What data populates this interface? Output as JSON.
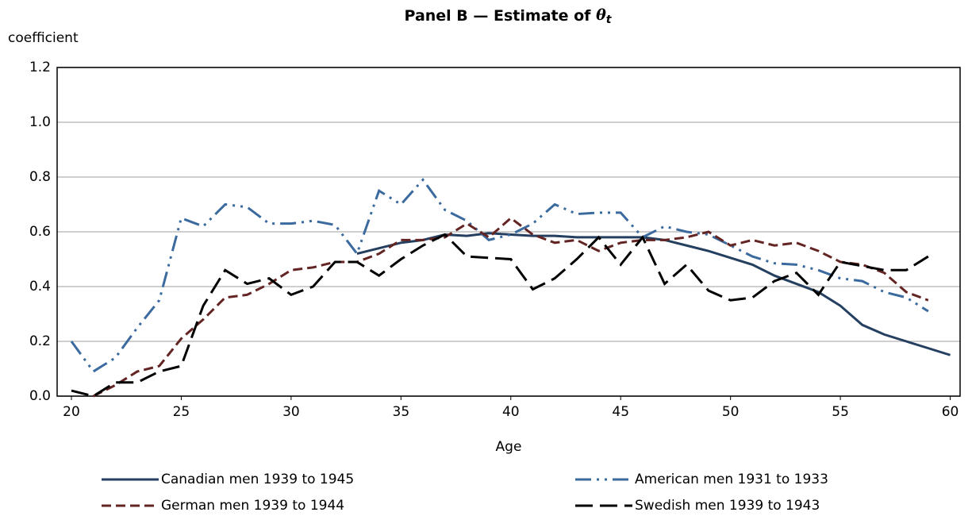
{
  "chart_data": {
    "type": "line",
    "title": "Panel B — Estimate of",
    "title_symbol": "θ",
    "title_subscript": "t",
    "y_label": "coefficient",
    "x_label": "Age",
    "x": [
      20,
      21,
      22,
      23,
      24,
      25,
      26,
      27,
      28,
      29,
      30,
      31,
      32,
      33,
      34,
      35,
      36,
      37,
      38,
      39,
      40,
      41,
      42,
      43,
      44,
      45,
      46,
      47,
      48,
      49,
      50,
      51,
      52,
      53,
      54,
      55,
      56,
      57,
      58,
      59,
      60
    ],
    "xlim": [
      19.35,
      60.45
    ],
    "xticks": [
      20,
      25,
      30,
      35,
      40,
      45,
      50,
      55,
      60
    ],
    "ylim": [
      0,
      1.2
    ],
    "yticks": [
      {
        "value": 0,
        "label": "0.0"
      },
      {
        "value": 0.2,
        "label": "0.2"
      },
      {
        "value": 0.4,
        "label": "0.4"
      },
      {
        "value": 0.6,
        "label": "0.6"
      },
      {
        "value": 0.8,
        "label": "0.8"
      },
      {
        "value": 1,
        "label": "1.0"
      },
      {
        "value": 1.2,
        "label": "1.2"
      }
    ],
    "grid": true,
    "legend": "bottom",
    "series": [
      {
        "name": "Canadian men 1939 to 1945",
        "color": "#243f60",
        "line_style": "solid",
        "values": [
          null,
          null,
          null,
          null,
          null,
          null,
          null,
          null,
          null,
          null,
          null,
          null,
          null,
          0.52,
          0.54,
          0.56,
          0.57,
          0.59,
          0.585,
          0.595,
          0.59,
          0.585,
          0.585,
          0.58,
          0.58,
          0.58,
          0.58,
          0.57,
          0.55,
          0.53,
          0.505,
          0.48,
          0.44,
          0.41,
          0.38,
          0.33,
          0.26,
          0.225,
          0.2,
          0.175,
          0.15
        ]
      },
      {
        "name": "American men 1931 to 1933",
        "color": "#3b6a9e",
        "line_style": "dash-dot-dot",
        "values": [
          0.2,
          0.09,
          0.14,
          0.25,
          0.35,
          0.65,
          0.62,
          0.7,
          0.69,
          0.63,
          0.63,
          0.64,
          0.625,
          0.52,
          0.75,
          0.7,
          0.79,
          0.68,
          0.64,
          0.57,
          0.59,
          0.63,
          0.7,
          0.665,
          0.67,
          0.67,
          0.58,
          0.62,
          0.6,
          0.59,
          0.55,
          0.51,
          0.485,
          0.48,
          0.46,
          0.43,
          0.42,
          0.38,
          0.36,
          0.31,
          null
        ]
      },
      {
        "name": "German men 1939 to 1944",
        "color": "#632523",
        "line_style": "dash",
        "values": [
          null,
          0,
          0.04,
          0.09,
          0.11,
          0.21,
          0.28,
          0.36,
          0.37,
          0.41,
          0.46,
          0.47,
          0.49,
          0.49,
          0.52,
          0.57,
          0.57,
          0.58,
          0.63,
          0.58,
          0.65,
          0.59,
          0.56,
          0.57,
          0.53,
          0.56,
          0.57,
          0.57,
          0.58,
          0.6,
          0.55,
          0.57,
          0.55,
          0.56,
          0.53,
          0.49,
          0.48,
          0.45,
          0.38,
          0.35,
          null
        ]
      },
      {
        "name": "Swedish men 1939 to 1943",
        "color": "#000000",
        "line_style": "long-dash",
        "values": [
          0.02,
          0,
          0.05,
          0.05,
          0.09,
          0.11,
          0.33,
          0.46,
          0.41,
          0.43,
          0.37,
          0.4,
          0.49,
          0.49,
          0.44,
          0.5,
          0.55,
          0.59,
          0.51,
          0.505,
          0.5,
          0.39,
          0.43,
          0.5,
          0.58,
          0.48,
          0.58,
          0.41,
          0.48,
          0.385,
          0.35,
          0.36,
          0.42,
          0.45,
          0.37,
          0.49,
          0.475,
          0.46,
          0.46,
          0.51,
          null
        ]
      }
    ]
  }
}
